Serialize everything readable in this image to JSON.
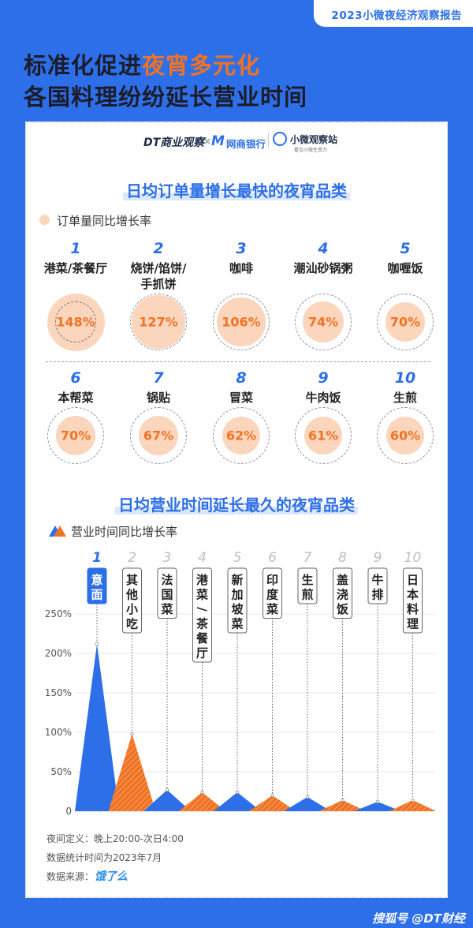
{
  "ribbon": "2023小微夜经济观察报告",
  "header": {
    "line1_pre": "标准化促进",
    "line1_hl": "夜宵多元化",
    "line2": "各国料理纷纷延长营业时间"
  },
  "logos": {
    "dt": "DT商业观察",
    "x": "×",
    "bank_mark": "M",
    "bank": "网商银行",
    "obs": "小微观察站",
    "obs_sub": "看见小微生意力"
  },
  "section1": {
    "title": "日均订单量增长最快的夜宵品类",
    "legend": "订单量同比增长率",
    "items": [
      {
        "rank": "1",
        "name": "港菜/茶餐厅",
        "pct": "148%"
      },
      {
        "rank": "2",
        "name": "烧饼/馅饼/\n手抓饼",
        "pct": "127%"
      },
      {
        "rank": "3",
        "name": "咖啡",
        "pct": "106%"
      },
      {
        "rank": "4",
        "name": "潮汕砂锅粥",
        "pct": "74%"
      },
      {
        "rank": "5",
        "name": "咖喱饭",
        "pct": "70%"
      },
      {
        "rank": "6",
        "name": "本帮菜",
        "pct": "70%"
      },
      {
        "rank": "7",
        "name": "锅贴",
        "pct": "67%"
      },
      {
        "rank": "8",
        "name": "冒菜",
        "pct": "62%"
      },
      {
        "rank": "9",
        "name": "牛肉饭",
        "pct": "61%"
      },
      {
        "rank": "10",
        "name": "生煎",
        "pct": "60%"
      }
    ]
  },
  "section2": {
    "title": "日均营业时间延长最久的夜宵品类",
    "legend": "营业时间同比增长率"
  },
  "chart_data": [
    {
      "type": "bubble",
      "title": "日均订单量增长最快的夜宵品类",
      "legend": [
        "订单量同比增长率"
      ],
      "categories": [
        "港菜/茶餐厅",
        "烧饼/馅饼/手抓饼",
        "咖啡",
        "潮汕砂锅粥",
        "咖喱饭",
        "本帮菜",
        "锅贴",
        "冒菜",
        "牛肉饭",
        "生煎"
      ],
      "values": [
        148,
        127,
        106,
        74,
        70,
        70,
        67,
        62,
        61,
        60
      ],
      "unit": "%"
    },
    {
      "type": "area",
      "title": "日均营业时间延长最久的夜宵品类",
      "legend": [
        "营业时间同比增长率"
      ],
      "categories": [
        "意面",
        "其他小吃",
        "法国菜",
        "港菜/茶餐厅",
        "新加坡菜",
        "印度菜",
        "生煎",
        "盖浇饭",
        "牛排",
        "日本料理"
      ],
      "ranks": [
        "1",
        "2",
        "3",
        "4",
        "5",
        "6",
        "7",
        "8",
        "9",
        "10"
      ],
      "values": [
        212,
        98,
        27,
        24,
        24,
        20,
        18,
        14,
        12,
        14
      ],
      "y_ticks": [
        "0",
        "50%",
        "100%",
        "150%",
        "200%",
        "250%"
      ],
      "ylim": [
        0,
        250
      ],
      "grid": true,
      "colors": [
        "#2d6fe8",
        "#f07323"
      ]
    }
  ],
  "footer": {
    "note1": "夜间定义：晚上20:00-次日4:00",
    "note2": "数据统计时间为2023年7月",
    "note3": "数据来源：",
    "eleme": "饿了么"
  },
  "watermark": "搜狐号 @DT财经"
}
